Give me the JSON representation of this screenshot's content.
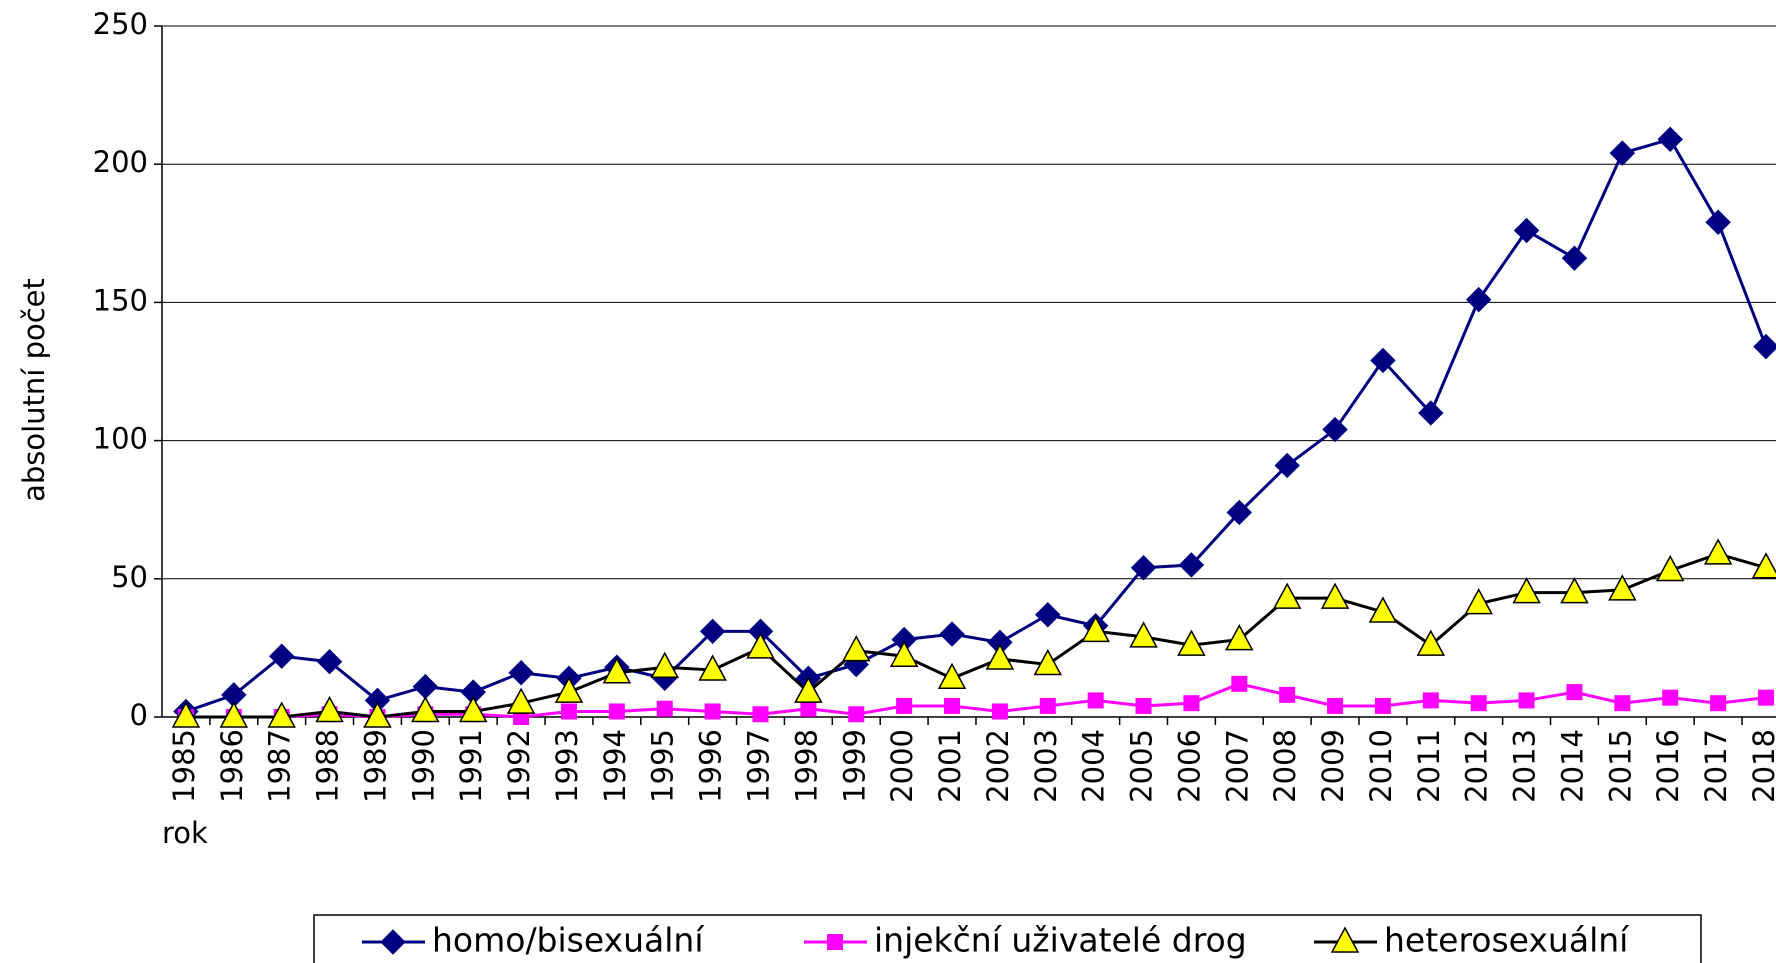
{
  "chart_data": {
    "type": "line",
    "y_label": "absolutní počet",
    "x_label": "rok",
    "categories": [
      "1985",
      "1986",
      "1987",
      "1988",
      "1989",
      "1990",
      "1991",
      "1992",
      "1993",
      "1994",
      "1995",
      "1996",
      "1997",
      "1998",
      "1999",
      "2000",
      "2001",
      "2002",
      "2003",
      "2004",
      "2005",
      "2006",
      "2007",
      "2008",
      "2009",
      "2010",
      "2011",
      "2012",
      "2013",
      "2014",
      "2015",
      "2016",
      "2017",
      "2018"
    ],
    "series": [
      {
        "name": "homo/bisexuální",
        "color": "#000080",
        "marker": "diamond",
        "values": [
          2,
          8,
          22,
          20,
          6,
          11,
          9,
          16,
          14,
          18,
          14,
          31,
          31,
          14,
          19,
          28,
          30,
          27,
          37,
          33,
          54,
          55,
          74,
          91,
          104,
          129,
          110,
          151,
          176,
          166,
          204,
          209,
          179,
          134
        ]
      },
      {
        "name": "injekční uživatelé drog",
        "color": "#ff00ff",
        "marker": "square",
        "values": [
          0,
          0,
          0,
          1,
          0,
          1,
          1,
          0,
          2,
          2,
          3,
          2,
          1,
          3,
          1,
          4,
          4,
          2,
          4,
          6,
          4,
          5,
          12,
          8,
          4,
          4,
          6,
          5,
          6,
          9,
          5,
          7,
          5,
          7
        ]
      },
      {
        "name": "heterosexuální",
        "color": "#000000",
        "marker": "triangle",
        "values": [
          0,
          0,
          0,
          2,
          0,
          2,
          2,
          5,
          9,
          16,
          18,
          17,
          25,
          9,
          24,
          22,
          14,
          21,
          19,
          31,
          29,
          26,
          28,
          43,
          43,
          38,
          26,
          41,
          45,
          45,
          46,
          53,
          59,
          54
        ]
      }
    ],
    "ylim": [
      0,
      250
    ],
    "yticks": [
      0,
      50,
      100,
      150,
      200,
      250
    ],
    "grid": true,
    "legend": "bottom"
  }
}
